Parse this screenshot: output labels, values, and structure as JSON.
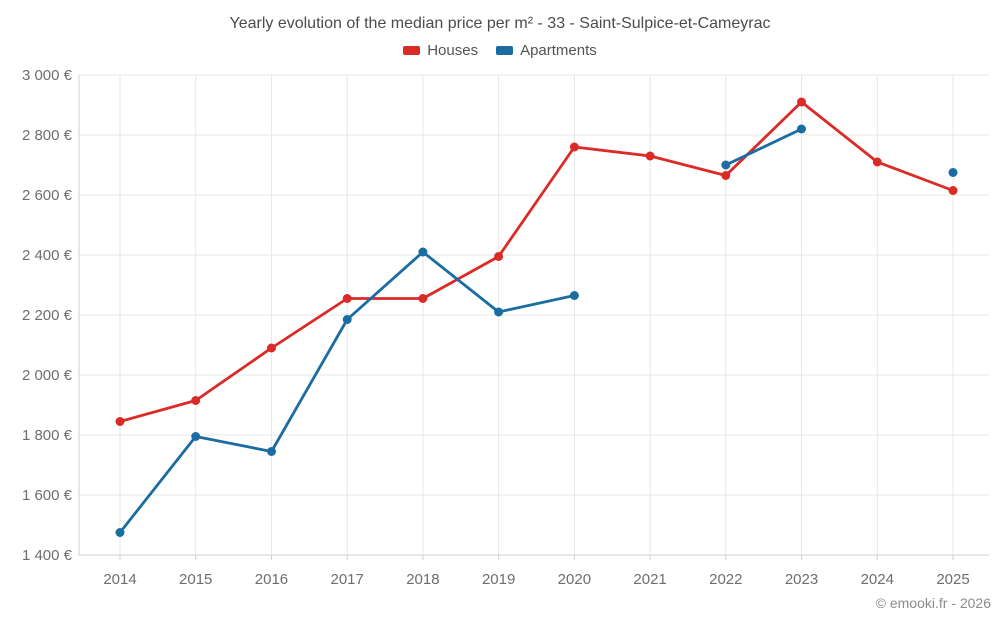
{
  "header": {
    "title": "Yearly evolution of the median price per m² - 33 - Saint-Sulpice-et-Cameyrac",
    "legend": [
      {
        "label": "Houses"
      },
      {
        "label": "Apartments"
      }
    ]
  },
  "footer": {
    "attribution": "© emooki.fr - 2026"
  },
  "chart_data": {
    "type": "line",
    "title": "Yearly evolution of the median price per m² - 33 - Saint-Sulpice-et-Cameyrac",
    "categories": [
      "2014",
      "2015",
      "2016",
      "2017",
      "2018",
      "2019",
      "2020",
      "2021",
      "2022",
      "2023",
      "2024",
      "2025"
    ],
    "series": [
      {
        "name": "Houses",
        "color": "#da2b27",
        "values": [
          1845,
          1915,
          2090,
          2255,
          2255,
          2395,
          2760,
          2730,
          2665,
          2910,
          2710,
          2615
        ]
      },
      {
        "name": "Apartments",
        "color": "#1a6ca3",
        "values": [
          1475,
          1795,
          1745,
          2185,
          2410,
          2210,
          2265,
          null,
          2700,
          2820,
          null,
          2675
        ]
      }
    ],
    "xlabel": "",
    "ylabel": "",
    "ylim": [
      1400,
      3000
    ],
    "y_tick_step": 200,
    "y_tick_labels": [
      "1 400 €",
      "1 600 €",
      "1 800 €",
      "2 000 €",
      "2 200 €",
      "2 400 €",
      "2 600 €",
      "2 800 €",
      "3 000 €"
    ],
    "grid": true,
    "legend_position": "top",
    "unit": "€/m²"
  }
}
